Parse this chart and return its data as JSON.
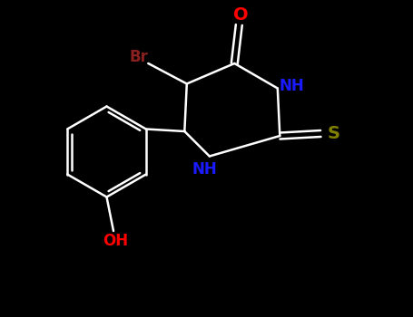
{
  "background_color": "#000000",
  "bond_color": "#ffffff",
  "atom_colors": {
    "O": "#ff0000",
    "N": "#1a1aff",
    "S": "#808000",
    "Br": "#8b2020",
    "OH": "#ff0000"
  },
  "figsize": [
    4.55,
    3.5
  ],
  "dpi": 100,
  "line_width": 1.8,
  "font_size_atoms": 12,
  "xlim": [
    0,
    9
  ],
  "ylim": [
    0,
    7
  ]
}
